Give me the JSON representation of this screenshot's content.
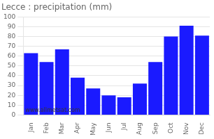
{
  "chart_data": {
    "type": "bar",
    "title": "Lecce : precipitation (mm)",
    "categories": [
      "Jan",
      "Feb",
      "Mar",
      "Apr",
      "May",
      "Jun",
      "Jul",
      "Aug",
      "Sep",
      "Oct",
      "Nov",
      "Dec"
    ],
    "values": [
      63,
      54,
      67,
      38,
      27,
      20,
      18,
      32,
      54,
      80,
      91,
      81
    ],
    "color": "#1a1aff",
    "ylim": [
      0,
      100
    ],
    "yticks": [
      0,
      10,
      20,
      30,
      40,
      50,
      60,
      70,
      80,
      90,
      100
    ],
    "grid": true,
    "annotations": [
      "www.allmetsat.com"
    ]
  }
}
